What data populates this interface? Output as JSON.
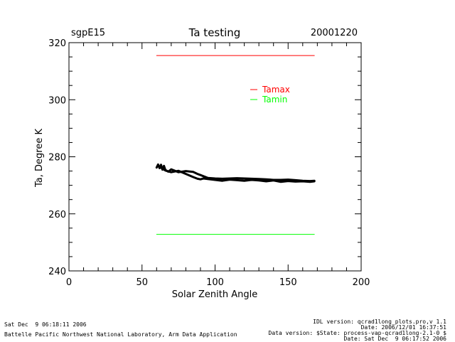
{
  "chart_data": {
    "type": "line",
    "title": "Ta testing",
    "site": "sgpE15",
    "date": "20001220",
    "xlabel": "Solar Zenith Angle",
    "ylabel": "Ta, Degree K",
    "xlim": [
      0,
      200
    ],
    "ylim": [
      240,
      320
    ],
    "x_ticks": [
      0,
      50,
      100,
      150,
      200
    ],
    "y_ticks": [
      240,
      260,
      280,
      300,
      320
    ],
    "grid": false,
    "legend_position": "top-right",
    "series": [
      {
        "name": "Tamax",
        "color": "#ff0000",
        "x": [
          60,
          168
        ],
        "y": [
          315.5,
          315.5
        ]
      },
      {
        "name": "Tamin",
        "color": "#00ff00",
        "x": [
          60,
          168
        ],
        "y": [
          252.8,
          252.8
        ]
      },
      {
        "name": "",
        "color": "#000000",
        "x": [
          60,
          61,
          62,
          63,
          64,
          65,
          66,
          68,
          70,
          75,
          80,
          85,
          88,
          90,
          92,
          95,
          100,
          105,
          110,
          115,
          120,
          125,
          130,
          135,
          140,
          145,
          150,
          155,
          160,
          165,
          168
        ],
        "y": [
          276.2,
          277.3,
          276.0,
          277.2,
          275.5,
          276.8,
          275.4,
          274.8,
          275.6,
          274.6,
          275.0,
          274.7,
          274.0,
          273.6,
          273.2,
          272.6,
          272.4,
          272.3,
          272.4,
          272.5,
          272.4,
          272.3,
          272.2,
          272.1,
          271.9,
          271.9,
          272.0,
          271.8,
          271.6,
          271.5,
          271.6
        ]
      },
      {
        "name": "",
        "color": "#000000",
        "x": [
          62,
          66,
          70,
          75,
          80,
          85,
          88,
          90,
          92,
          95,
          100,
          105,
          110,
          115,
          120,
          125,
          130,
          135,
          140,
          145,
          150,
          155,
          160,
          165,
          168
        ],
        "y": [
          276.5,
          275.2,
          274.6,
          275.1,
          274.0,
          272.9,
          272.3,
          272.1,
          272.4,
          272.2,
          271.9,
          271.6,
          272.0,
          271.8,
          271.6,
          271.9,
          271.7,
          271.4,
          271.7,
          271.2,
          271.5,
          271.3,
          271.4,
          271.2,
          271.4
        ]
      }
    ]
  },
  "footer": {
    "left_line1": "Sat Dec  9 06:18:11 2006",
    "left_line2": "Battelle Pacific Northwest National Laboratory, Arm Data Application",
    "right_line1": "IDL version: qcrad1long_plots.pro,v 1.1",
    "right_line2": "Date: 2006/12/01 16:37:51",
    "right_line3": "Data version: $State: process-vap-qcrad1long-2.1-0 $",
    "right_line4": "Date: Sat Dec  9 06:17:52 2006"
  },
  "colors": {
    "axis": "#000000",
    "background": "#ffffff"
  }
}
